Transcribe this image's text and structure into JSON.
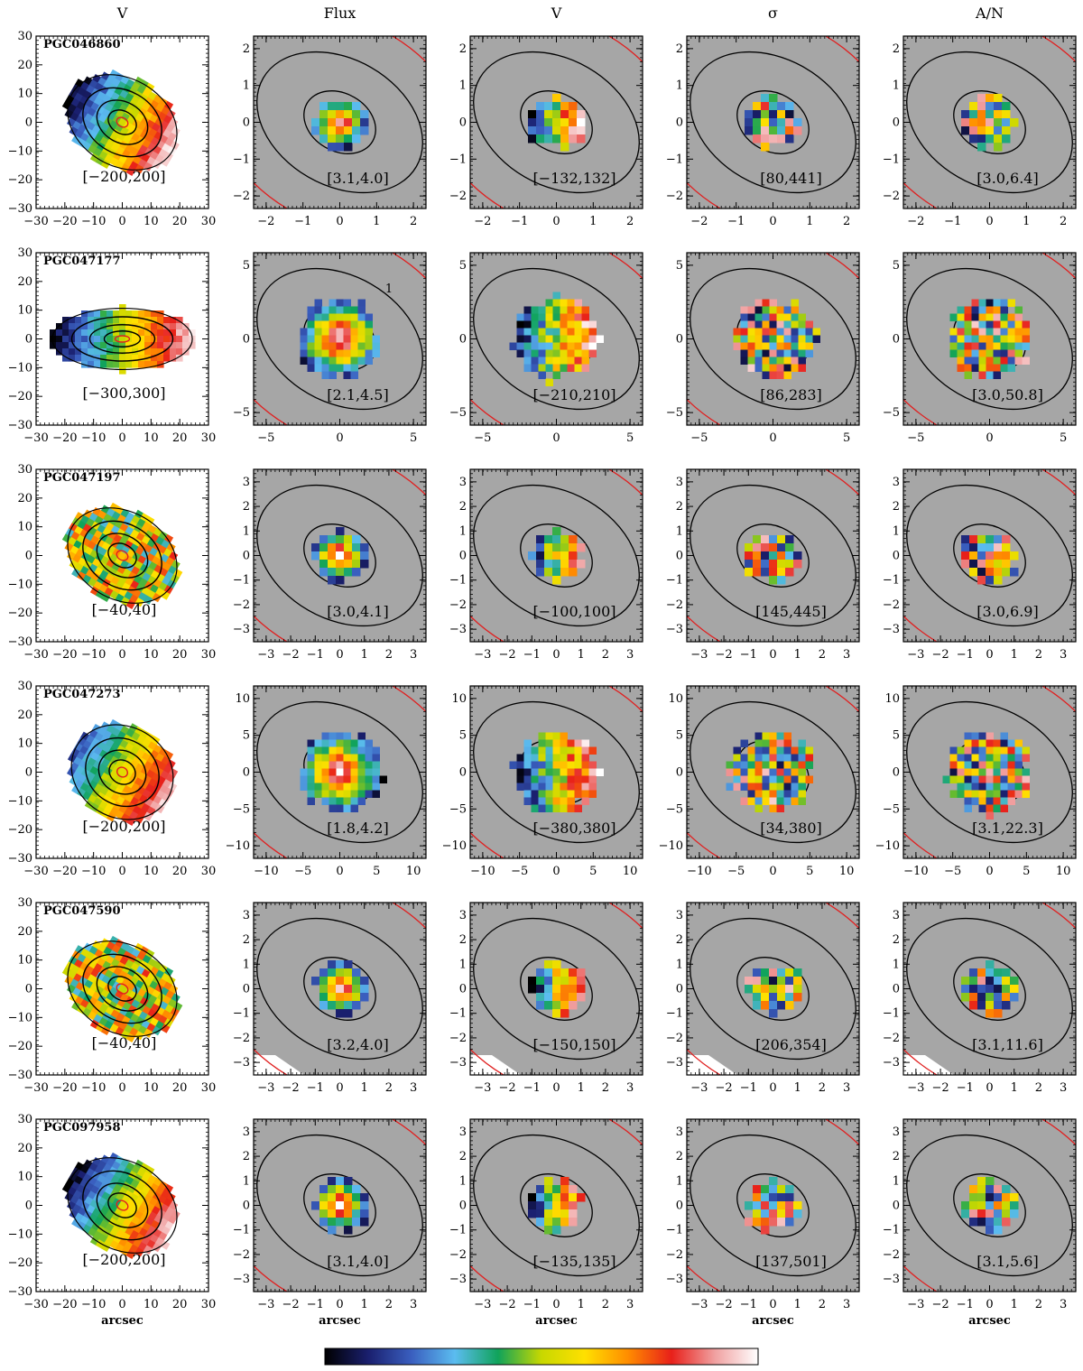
{
  "figure": {
    "column_headers": [
      "V",
      "Flux",
      "V",
      "σ",
      "A/N"
    ],
    "x_axis_label": "arcsec",
    "colorbar": {
      "name": "rainbow-colorbar",
      "stops": [
        "#000000",
        "#1a1f6e",
        "#3a5fbf",
        "#5bbcf0",
        "#10a35a",
        "#c8d800",
        "#ffe000",
        "#ff8c00",
        "#e8201a",
        "#f0a0a0",
        "#ffffff"
      ]
    },
    "rows": [
      {
        "galaxy": "PGC046860",
        "large_map": {
          "xticks": [
            "−30",
            "−20",
            "−10",
            "0",
            "10",
            "20",
            "30"
          ],
          "yticks": [
            "30",
            "20",
            "10",
            "0",
            "−10",
            "−20",
            "−30"
          ],
          "range": "[−200,200]"
        },
        "small_ticks": [
          "−2",
          "−1",
          "0",
          "1",
          "2"
        ],
        "panels": [
          {
            "quantity": "Flux",
            "range": "[3.1,4.0]"
          },
          {
            "quantity": "V",
            "range": "[−132,132]"
          },
          {
            "quantity": "σ",
            "range": "[80,441]"
          },
          {
            "quantity": "A/N",
            "range": "[3.0,6.4]"
          }
        ]
      },
      {
        "galaxy": "PGC047177",
        "large_map": {
          "xticks": [
            "−30",
            "−20",
            "−10",
            "0",
            "10",
            "20",
            "30"
          ],
          "yticks": [
            "30",
            "20",
            "10",
            "0",
            "−10",
            "−20",
            "−30"
          ],
          "range": "[−300,300]"
        },
        "small_ticks": [
          "−5",
          "0",
          "5"
        ],
        "annotation": "1",
        "panels": [
          {
            "quantity": "Flux",
            "range": "[2.1,4.5]"
          },
          {
            "quantity": "V",
            "range": "[−210,210]"
          },
          {
            "quantity": "σ",
            "range": "[86,283]"
          },
          {
            "quantity": "A/N",
            "range": "[3.0,50.8]"
          }
        ]
      },
      {
        "galaxy": "PGC047197",
        "large_map": {
          "xticks": [
            "−30",
            "−20",
            "−10",
            "0",
            "10",
            "20",
            "30"
          ],
          "yticks": [
            "30",
            "20",
            "10",
            "0",
            "−10",
            "−20",
            "−30"
          ],
          "range": "[−40,40]"
        },
        "small_ticks": [
          "−3",
          "−2",
          "−1",
          "0",
          "1",
          "2",
          "3"
        ],
        "panels": [
          {
            "quantity": "Flux",
            "range": "[3.0,4.1]"
          },
          {
            "quantity": "V",
            "range": "[−100,100]"
          },
          {
            "quantity": "σ",
            "range": "[145,445]"
          },
          {
            "quantity": "A/N",
            "range": "[3.0,6.9]"
          }
        ]
      },
      {
        "galaxy": "PGC047273",
        "large_map": {
          "xticks": [
            "−30",
            "−20",
            "−10",
            "0",
            "10",
            "20",
            "30"
          ],
          "yticks": [
            "30",
            "20",
            "10",
            "0",
            "−10",
            "−20",
            "−30"
          ],
          "range": "[−200,200]"
        },
        "small_ticks": [
          "−10",
          "−5",
          "0",
          "5",
          "10"
        ],
        "panels": [
          {
            "quantity": "Flux",
            "range": "[1.8,4.2]"
          },
          {
            "quantity": "V",
            "range": "[−380,380]"
          },
          {
            "quantity": "σ",
            "range": "[34,380]"
          },
          {
            "quantity": "A/N",
            "range": "[3.1,22.3]"
          }
        ]
      },
      {
        "galaxy": "PGC047590",
        "large_map": {
          "xticks": [
            "−30",
            "−20",
            "−10",
            "0",
            "10",
            "20",
            "30"
          ],
          "yticks": [
            "30",
            "20",
            "10",
            "0",
            "−10",
            "−20",
            "−30"
          ],
          "range": "[−40,40]"
        },
        "small_ticks": [
          "−3",
          "−2",
          "−1",
          "0",
          "1",
          "2",
          "3"
        ],
        "panels": [
          {
            "quantity": "Flux",
            "range": "[3.2,4.0]"
          },
          {
            "quantity": "V",
            "range": "[−150,150]"
          },
          {
            "quantity": "σ",
            "range": "[206,354]"
          },
          {
            "quantity": "A/N",
            "range": "[3.1,11.6]"
          }
        ]
      },
      {
        "galaxy": "PGC097958",
        "large_map": {
          "xticks": [
            "−30",
            "−20",
            "−10",
            "0",
            "10",
            "20",
            "30"
          ],
          "yticks": [
            "30",
            "20",
            "10",
            "0",
            "−10",
            "−20",
            "−30"
          ],
          "range": "[−200,200]"
        },
        "small_ticks": [
          "−3",
          "−2",
          "−1",
          "0",
          "1",
          "2",
          "3"
        ],
        "panels": [
          {
            "quantity": "Flux",
            "range": "[3.1,4.0]"
          },
          {
            "quantity": "V",
            "range": "[−135,135]"
          },
          {
            "quantity": "σ",
            "range": "[137,501]"
          },
          {
            "quantity": "A/N",
            "range": "[3.1,5.6]"
          }
        ]
      }
    ]
  }
}
